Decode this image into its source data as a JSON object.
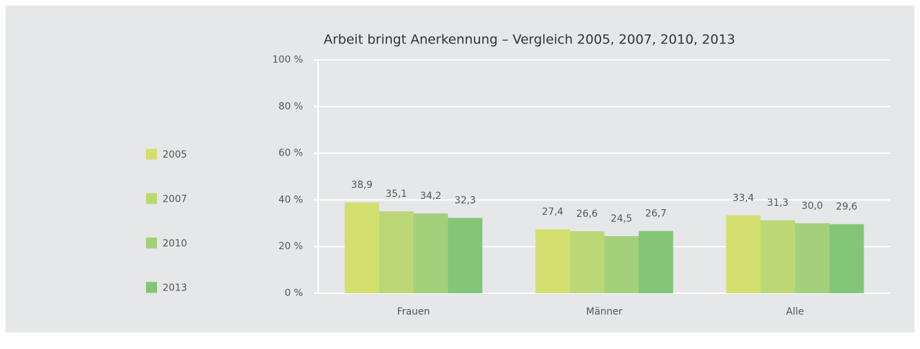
{
  "chart_data": {
    "type": "bar",
    "title": "Arbeit bringt Anerkennung – Vergleich 2005, 2007, 2010, 2013",
    "categories": [
      "Frauen",
      "Männer",
      "Alle"
    ],
    "series": [
      {
        "name": "2005",
        "color": "#d3df6f",
        "values": [
          38.9,
          27.4,
          33.4
        ],
        "value_labels": [
          "38,9",
          "27,4",
          "33,4"
        ]
      },
      {
        "name": "2007",
        "color": "#bcd876",
        "values": [
          35.1,
          26.6,
          31.3
        ],
        "value_labels": [
          "35,1",
          "26,6",
          "31,3"
        ]
      },
      {
        "name": "2010",
        "color": "#a5d07b",
        "values": [
          34.2,
          24.5,
          30.0
        ],
        "value_labels": [
          "34,2",
          "24,5",
          "30,0"
        ]
      },
      {
        "name": "2013",
        "color": "#83c677",
        "values": [
          32.3,
          26.7,
          29.6
        ],
        "value_labels": [
          "32,3",
          "26,7",
          "29,6"
        ]
      }
    ],
    "ylim": [
      0,
      100
    ],
    "yticks": [
      {
        "value": 0,
        "label": "0 %"
      },
      {
        "value": 20,
        "label": "20 %"
      },
      {
        "value": 40,
        "label": "40 %"
      },
      {
        "value": 60,
        "label": "60 %"
      },
      {
        "value": 80,
        "label": "80 %"
      },
      {
        "value": 100,
        "label": "100 %"
      }
    ],
    "grid": true,
    "legend": "left"
  }
}
